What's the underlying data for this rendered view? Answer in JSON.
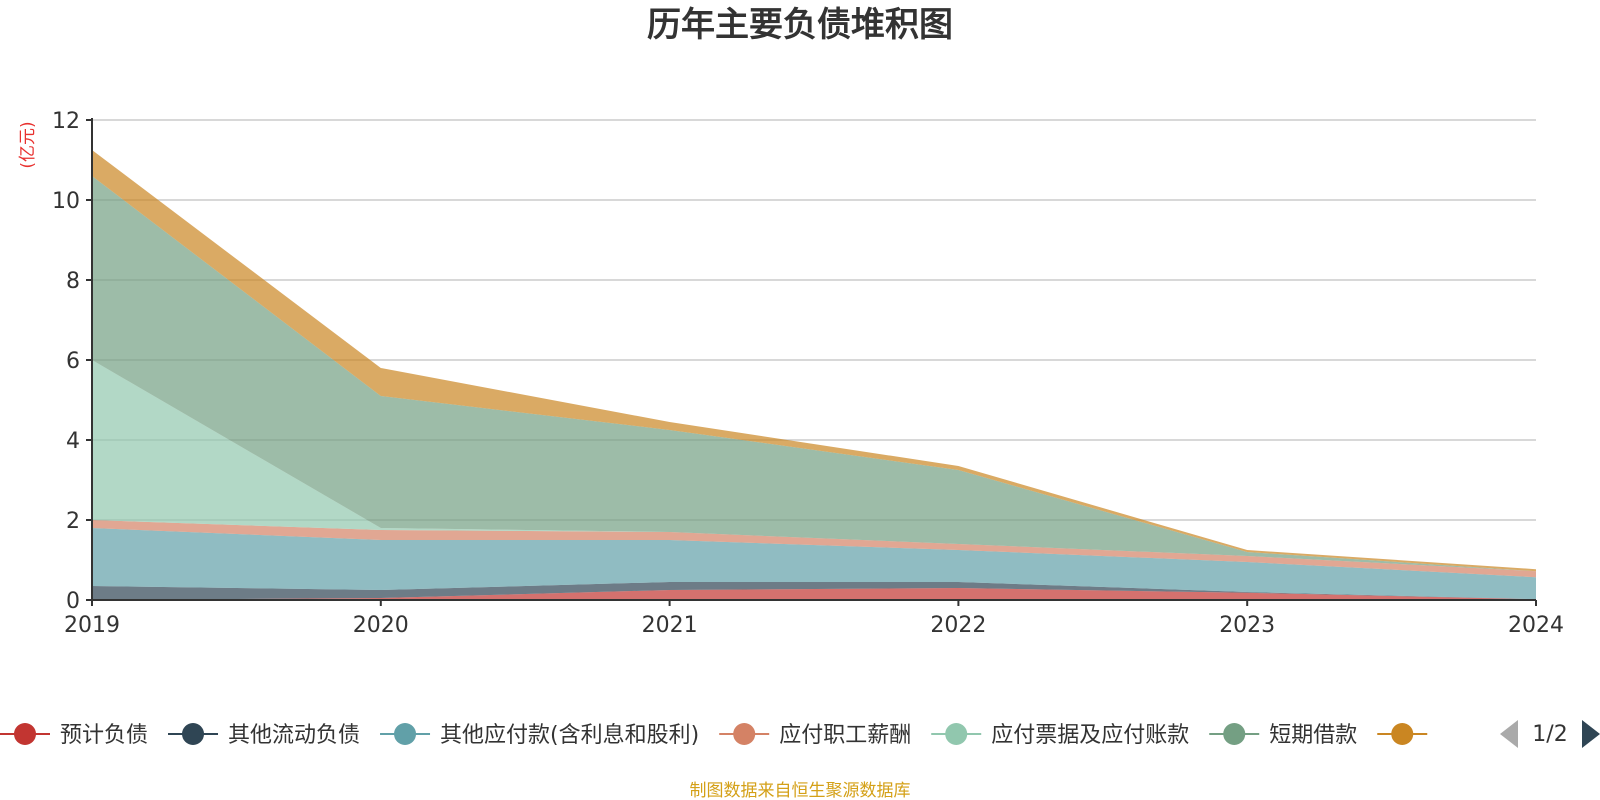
{
  "chart_data": {
    "type": "area",
    "stacked": true,
    "title": "历年主要负债堆积图",
    "unit_label": "(亿元)",
    "x": [
      "2019",
      "2020",
      "2021",
      "2022",
      "2023",
      "2024"
    ],
    "yticks": [
      "0",
      "2",
      "4",
      "6",
      "8",
      "10",
      "12"
    ],
    "ylim": [
      0,
      12
    ],
    "grid": true,
    "series": [
      {
        "name": "预计负债",
        "color": "#c23531",
        "values": [
          0.0,
          0.05,
          0.25,
          0.3,
          0.18,
          0.02
        ]
      },
      {
        "name": "其他流动负债",
        "color": "#2f4554",
        "values": [
          0.35,
          0.2,
          0.2,
          0.15,
          0.02,
          0.0
        ]
      },
      {
        "name": "其他应付款(含利息和股利)",
        "color": "#61a0a8",
        "values": [
          1.45,
          1.25,
          1.05,
          0.8,
          0.75,
          0.55
        ]
      },
      {
        "name": "应付职工薪酬",
        "color": "#d48265",
        "values": [
          0.2,
          0.25,
          0.2,
          0.15,
          0.15,
          0.15
        ]
      },
      {
        "name": "应付票据及应付账款",
        "color": "#91c7ae",
        "values": [
          4.0,
          0.05,
          0.0,
          0.0,
          0.0,
          0.0
        ]
      },
      {
        "name": "短期借款",
        "color": "#749f83",
        "values": [
          4.6,
          3.3,
          2.55,
          1.85,
          0.1,
          0.0
        ]
      },
      {
        "name": "",
        "color": "#ca8622",
        "values": [
          0.65,
          0.7,
          0.2,
          0.1,
          0.05,
          0.05
        ]
      }
    ],
    "legend": {
      "position": "bottom",
      "page": "1/2"
    }
  },
  "source_note": "制图数据来自恒生聚源数据库"
}
